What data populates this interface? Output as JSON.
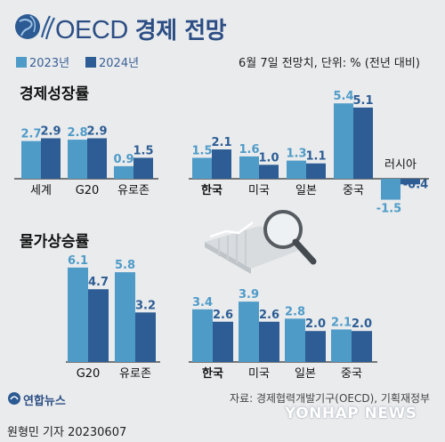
{
  "header": {
    "brand": "OECD",
    "title": "경제 전망",
    "legend_2023": "2023년",
    "legend_2024": "2024년",
    "note": "6월 7일 전망치, 단위: % (전년 대비)"
  },
  "colors": {
    "y2023": "#4f9bc8",
    "y2024": "#2d5d94",
    "baseline": "#333333"
  },
  "chart_data": [
    {
      "type": "bar",
      "title": "경제성장률",
      "categories": [
        "세계",
        "G20",
        "유로존",
        "한국",
        "미국",
        "일본",
        "중국",
        "러시아"
      ],
      "series": [
        {
          "name": "2023년",
          "values": [
            2.7,
            2.8,
            0.9,
            1.5,
            1.6,
            1.3,
            5.4,
            -1.5
          ]
        },
        {
          "name": "2024년",
          "values": [
            2.9,
            2.9,
            1.5,
            2.1,
            1.0,
            1.1,
            5.1,
            -0.4
          ]
        }
      ],
      "bold_categories": [
        "한국"
      ]
    },
    {
      "type": "bar",
      "title": "물가상승률",
      "categories": [
        "G20",
        "유로존",
        "한국",
        "미국",
        "일본",
        "중국"
      ],
      "series": [
        {
          "name": "2023년",
          "values": [
            6.1,
            5.8,
            3.4,
            3.9,
            2.8,
            2.1
          ]
        },
        {
          "name": "2024년",
          "values": [
            4.7,
            3.2,
            2.6,
            2.6,
            2.0,
            2.0
          ]
        }
      ],
      "bold_categories": [
        "한국"
      ]
    }
  ],
  "footer": {
    "source": "자료: 경제협력개발기구(OECD), 기획재정부",
    "logo": "연합뉴스",
    "watermark": "YONHAP NEWS",
    "byline": "원형민 기자  20230607"
  }
}
